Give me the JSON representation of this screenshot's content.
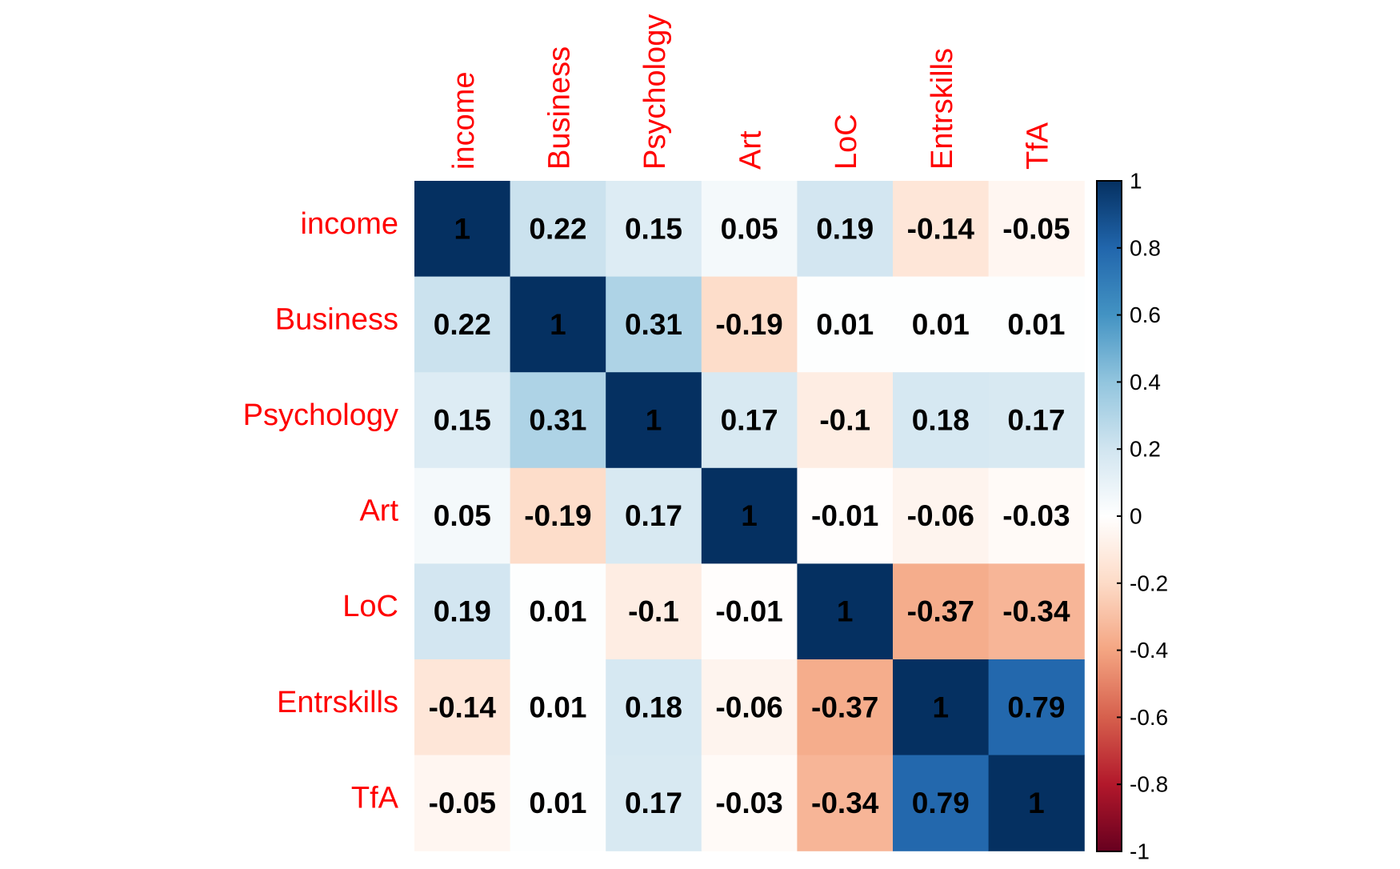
{
  "chart_data": {
    "type": "heatmap",
    "title": "",
    "xlabel": "",
    "ylabel": "",
    "variables": [
      "income",
      "Business",
      "Psychology",
      "Art",
      "LoC",
      "Entrskills",
      "TfA"
    ],
    "matrix": [
      [
        1,
        0.22,
        0.15,
        0.05,
        0.19,
        -0.14,
        -0.05
      ],
      [
        0.22,
        1,
        0.31,
        -0.19,
        0.01,
        0.01,
        0.01
      ],
      [
        0.15,
        0.31,
        1,
        0.17,
        -0.1,
        0.18,
        0.17
      ],
      [
        0.05,
        -0.19,
        0.17,
        1,
        -0.01,
        -0.06,
        -0.03
      ],
      [
        0.19,
        0.01,
        -0.1,
        -0.01,
        1,
        -0.37,
        -0.34
      ],
      [
        -0.14,
        0.01,
        0.18,
        -0.06,
        -0.37,
        1,
        0.79
      ],
      [
        -0.05,
        0.01,
        0.17,
        -0.03,
        -0.34,
        0.79,
        1
      ]
    ],
    "color_scale": {
      "range": [
        -1,
        1
      ],
      "ticks": [
        "1",
        "0.8",
        "0.6",
        "0.4",
        "0.2",
        "0",
        "-0.2",
        "-0.4",
        "-0.6",
        "-0.8",
        "-1"
      ],
      "colors_high_to_low": [
        "#053061",
        "#2166ac",
        "#4393c3",
        "#92c5de",
        "#d1e5f0",
        "#ffffff",
        "#fddbc7",
        "#f4a582",
        "#d6604d",
        "#b2182b",
        "#67001f"
      ]
    },
    "label_color": "#ff0000",
    "value_label_color": "#000000",
    "grid": false,
    "legend": "right"
  }
}
